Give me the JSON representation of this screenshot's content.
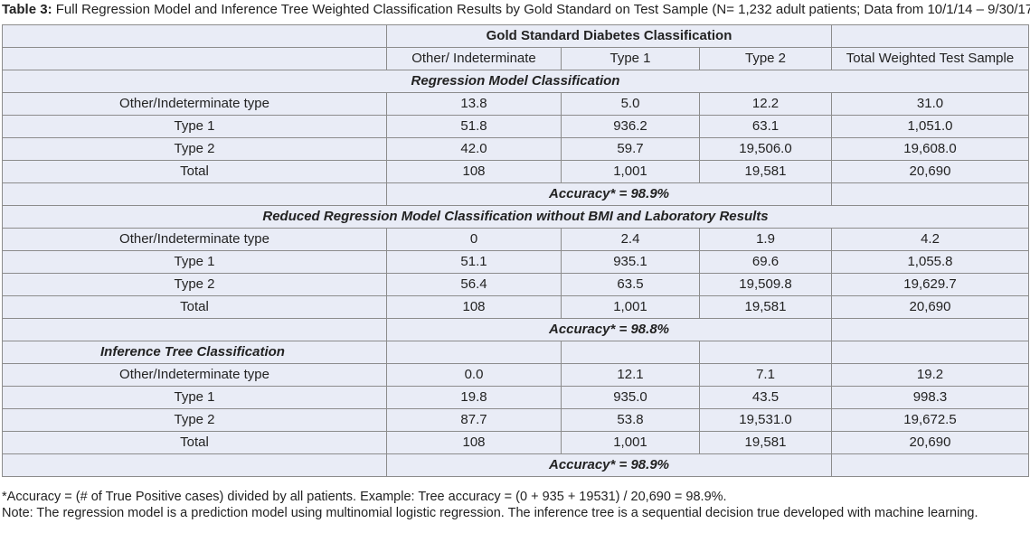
{
  "caption": {
    "label": "Table 3:",
    "text": " Full Regression Model and Inference Tree Weighted Classification Results by Gold Standard on Test Sample (N= 1,232 adult patients; Data from 10/1/14 – 9/30/17)"
  },
  "header": {
    "group_title": "Gold Standard Diabetes Classification",
    "columns": [
      "Other/ Indeterminate",
      "Type 1",
      "Type 2",
      "Total Weighted Test Sample"
    ]
  },
  "sections": [
    {
      "title": "Regression Model Classification",
      "rows": [
        {
          "label": "Other/Indeterminate type",
          "values": [
            "13.8",
            "5.0",
            "12.2",
            "31.0"
          ]
        },
        {
          "label": "Type 1",
          "values": [
            "51.8",
            "936.2",
            "63.1",
            "1,051.0"
          ]
        },
        {
          "label": "Type 2",
          "values": [
            "42.0",
            "59.7",
            "19,506.0",
            "19,608.0"
          ]
        },
        {
          "label": "Total",
          "values": [
            "108",
            "1,001",
            "19,581",
            "20,690"
          ]
        }
      ],
      "accuracy": "Accuracy* = 98.9%"
    },
    {
      "title": "Reduced Regression Model Classification without BMI and Laboratory Results",
      "rows": [
        {
          "label": "Other/Indeterminate type",
          "values": [
            "0",
            "2.4",
            "1.9",
            "4.2"
          ]
        },
        {
          "label": "Type 1",
          "values": [
            "51.1",
            "935.1",
            "69.6",
            "1,055.8"
          ]
        },
        {
          "label": "Type 2",
          "values": [
            "56.4",
            "63.5",
            "19,509.8",
            "19,629.7"
          ]
        },
        {
          "label": "Total",
          "values": [
            "108",
            "1,001",
            "19,581",
            "20,690"
          ]
        }
      ],
      "accuracy": "Accuracy* = 98.8%"
    },
    {
      "title": "Inference Tree Classification",
      "rows": [
        {
          "label": "Other/Indeterminate type",
          "values": [
            "0.0",
            "12.1",
            "7.1",
            "19.2"
          ]
        },
        {
          "label": "Type 1",
          "values": [
            "19.8",
            "935.0",
            "43.5",
            "998.3"
          ]
        },
        {
          "label": "Type 2",
          "values": [
            "87.7",
            "53.8",
            "19,531.0",
            "19,672.5"
          ]
        },
        {
          "label": "Total",
          "values": [
            "108",
            "1,001",
            "19,581",
            "20,690"
          ]
        }
      ],
      "accuracy": "Accuracy* = 98.9%"
    }
  ],
  "notes": [
    "*Accuracy = (# of True Positive cases) divided by all patients. Example: Tree accuracy = (0 + 935 + 19531) / 20,690 = 98.9%.",
    "Note: The regression model is a prediction model using multinomial logistic regression. The inference tree is a sequential decision true developed with machine learning."
  ],
  "colors": {
    "table_background": "#e9ecf6",
    "border": "#8c8c8c",
    "text": "#222222"
  }
}
